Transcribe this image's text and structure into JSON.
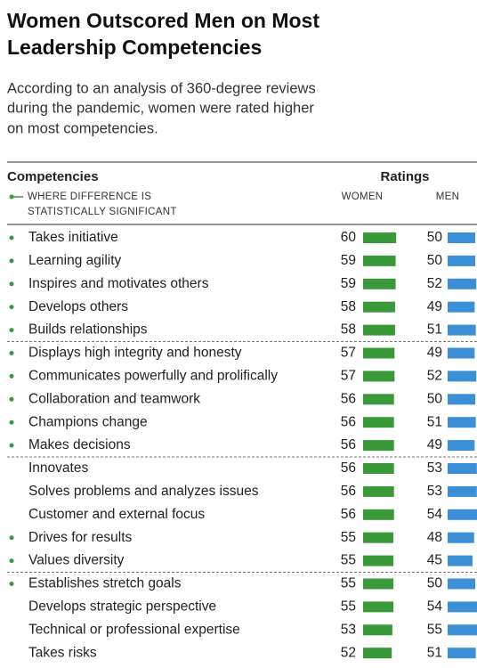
{
  "chart_data": {
    "type": "bar",
    "title": [
      "Women Outscored Men on Most",
      "Leadership Competencies"
    ],
    "subtitle": [
      "According to an analysis of 360-degree reviews",
      "during the pandemic, women were rated higher",
      "on most competencies."
    ],
    "label_header": "Competencies",
    "value_header": "Ratings",
    "legend": [
      "WHERE DIFFERENCE IS",
      "STATISTICALLY SIGNIFICANT"
    ],
    "categories": [
      "Takes initiative",
      "Learning agility",
      "Inspires and motivates others",
      "Develops others",
      "Builds relationships",
      "Displays high integrity and honesty",
      "Communicates powerfully and prolifically",
      "Collaboration and teamwork",
      "Champions change",
      "Makes decisions",
      "Innovates",
      "Solves problems and analyzes issues",
      "Customer and external focus",
      "Drives for results",
      "Values diversity",
      "Establishes stretch goals",
      "Develops strategic perspective",
      "Technical or professional expertise",
      "Takes risks"
    ],
    "significant": [
      true,
      true,
      true,
      true,
      true,
      true,
      true,
      true,
      true,
      true,
      false,
      false,
      false,
      true,
      true,
      true,
      false,
      false,
      false
    ],
    "significant_color": "#3a9a3a",
    "series": [
      {
        "name": "WOMEN",
        "color": "#3a9a3a",
        "values": [
          60,
          59,
          59,
          58,
          58,
          57,
          57,
          56,
          56,
          56,
          56,
          56,
          56,
          55,
          55,
          55,
          55,
          53,
          52
        ]
      },
      {
        "name": "MEN",
        "color": "#3a8fd6",
        "values": [
          50,
          50,
          52,
          49,
          51,
          49,
          52,
          50,
          51,
          49,
          53,
          53,
          54,
          48,
          45,
          50,
          54,
          55,
          51
        ]
      }
    ]
  }
}
